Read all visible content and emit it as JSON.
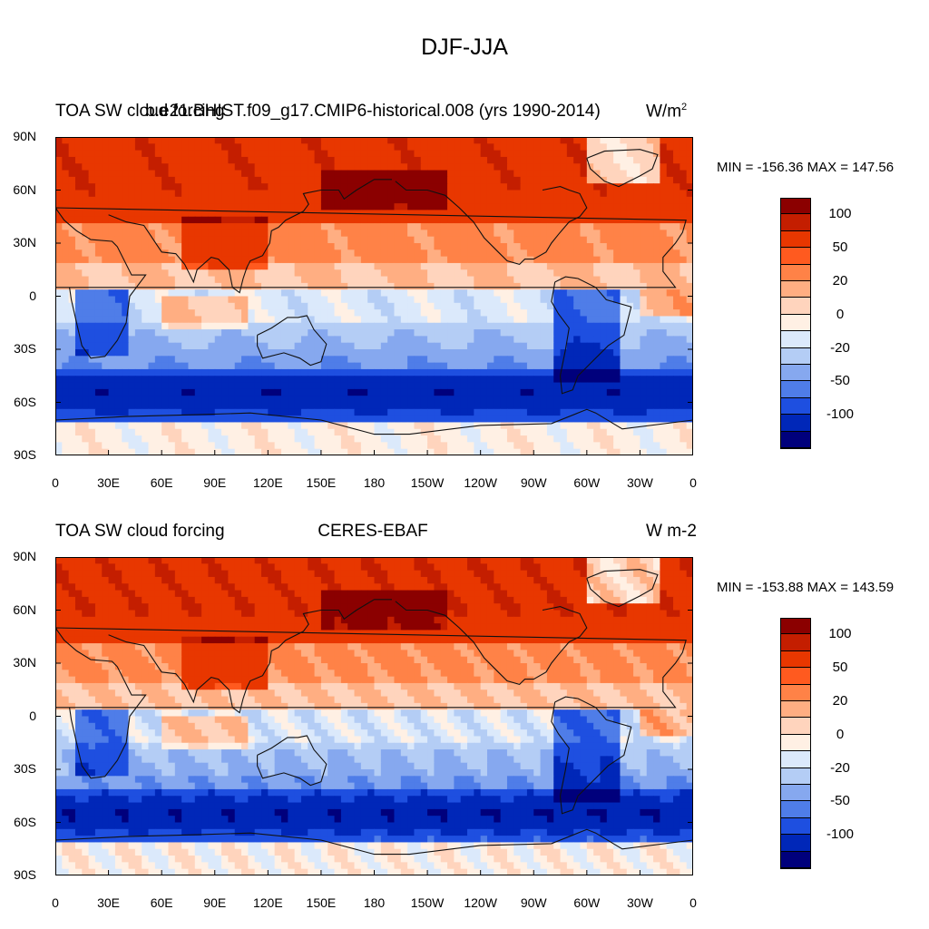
{
  "figure": {
    "title": "DJF-JJA"
  },
  "panels": [
    {
      "left_label": "TOA SW cloud forcing",
      "center_label": "b.e21.BHIST.f09_g17.CMIP6-historical.008 (yrs 1990-2014)",
      "units_label": "W/m",
      "units_sup": "2",
      "minmax": "MIN = -156.36 MAX = 147.56"
    },
    {
      "left_label": "TOA SW cloud forcing",
      "center_label": "CERES-EBAF",
      "units_label": "W m-2",
      "units_sup": "",
      "minmax": "MIN = -153.88 MAX = 143.59"
    }
  ],
  "axes": {
    "lat_ticks": [
      "90N",
      "60N",
      "30N",
      "0",
      "30S",
      "60S",
      "90S"
    ],
    "lon_ticks": [
      "0",
      "30E",
      "60E",
      "90E",
      "120E",
      "150E",
      "180",
      "150W",
      "120W",
      "90W",
      "60W",
      "30W",
      "0"
    ]
  },
  "colorbar": {
    "labels": [
      "100",
      "50",
      "20",
      "0",
      "-20",
      "-50",
      "-100"
    ],
    "colors": [
      "#8b0000",
      "#c41e00",
      "#e83700",
      "#ff5a1f",
      "#ff8247",
      "#ffae82",
      "#ffd4bd",
      "#fff0e4",
      "#dbe9fb",
      "#b4cdf5",
      "#86a8ef",
      "#4f7de8",
      "#1e4fe0",
      "#0027b8",
      "#00007c"
    ]
  },
  "chart_data": [
    {
      "type": "heatmap",
      "title": "DJF-JJA",
      "variable": "TOA SW cloud forcing",
      "source": "b.e21.BHIST.f09_g17.CMIP6-historical.008 (yrs 1990-2014)",
      "units": "W/m2",
      "min": -156.36,
      "max": 147.56,
      "contour_levels": [
        -100,
        -50,
        -20,
        0,
        20,
        50,
        100
      ],
      "lat_range": [
        -90,
        90
      ],
      "lon_range": [
        0,
        360
      ]
    },
    {
      "type": "heatmap",
      "title": "DJF-JJA",
      "variable": "TOA SW cloud forcing",
      "source": "CERES-EBAF",
      "units": "W m-2",
      "min": -153.88,
      "max": 143.59,
      "contour_levels": [
        -100,
        -50,
        -20,
        0,
        20,
        50,
        100
      ],
      "lat_range": [
        -90,
        90
      ],
      "lon_range": [
        0,
        360
      ]
    }
  ]
}
